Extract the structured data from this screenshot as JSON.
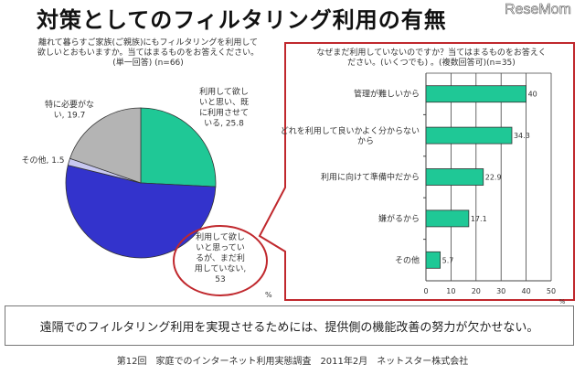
{
  "title": "対策としてのフィルタリング利用の有無",
  "logo": "ReseMom",
  "conclusion": "遠隔でのフィルタリング利用を実現させるためには、提供側の機能改善の努力が欠かせない。",
  "source": "第12回　家庭でのインターネット利用実態調査　2011年2月　ネットスター株式会社",
  "colors": {
    "green": "#1fc896",
    "blue": "#3333cc",
    "lavender": "#c8c8f0",
    "gray": "#b4b4b4",
    "red": "#c0282d"
  },
  "chart_data": [
    {
      "type": "pie",
      "title_lines": [
        "離れて暮らすご家族(ご親族)にもフィルタリングを利用して",
        "欲しいとおもいますか。当てはまるものをお答えください。",
        "(単一回答) (n=66)"
      ],
      "unit": "%",
      "slices": [
        {
          "name": "利用して欲しいと思い、既に利用させている",
          "value": 25.8,
          "label_lines": [
            "利用して欲し",
            "いと思い、既",
            "に利用させて",
            "いる, 25.8"
          ],
          "color": "#1fc896"
        },
        {
          "name": "利用して欲しいと思っているが、まだ利用していない",
          "value": 53,
          "label_lines": [
            "利用して欲し",
            "いと思ってい",
            "るが、まだ利",
            "用していない,",
            "53"
          ],
          "color": "#3333cc"
        },
        {
          "name": "その他",
          "value": 1.5,
          "label_lines": [
            "その他, 1.5"
          ],
          "color": "#c8c8f0"
        },
        {
          "name": "特に必要がない",
          "value": 19.7,
          "label_lines": [
            "特に必要がな",
            "い, 19.7"
          ],
          "color": "#b4b4b4"
        }
      ]
    },
    {
      "type": "bar",
      "orientation": "horizontal",
      "title_lines": [
        "なぜまだ利用していないのですか？当てはまるものをお答えく",
        "ださい。(いくつでも) 。(複数回答可)(n=35)"
      ],
      "categories": [
        [
          "管理が難しいから"
        ],
        [
          "どれを利用して良いかよく分からない",
          "から"
        ],
        [
          "利用に向けて準備中だから"
        ],
        [
          "嫌がるから"
        ],
        [
          "その他"
        ]
      ],
      "values": [
        40,
        34.3,
        22.9,
        17.1,
        5.7
      ],
      "value_labels": [
        "40",
        "34.3",
        "22.9",
        "17.1",
        "5.7"
      ],
      "xlim": [
        0,
        50
      ],
      "xticks": [
        "0",
        "10",
        "20",
        "30",
        "40",
        "50"
      ],
      "unit": "%",
      "grid": true,
      "color": "#1fc896"
    }
  ]
}
